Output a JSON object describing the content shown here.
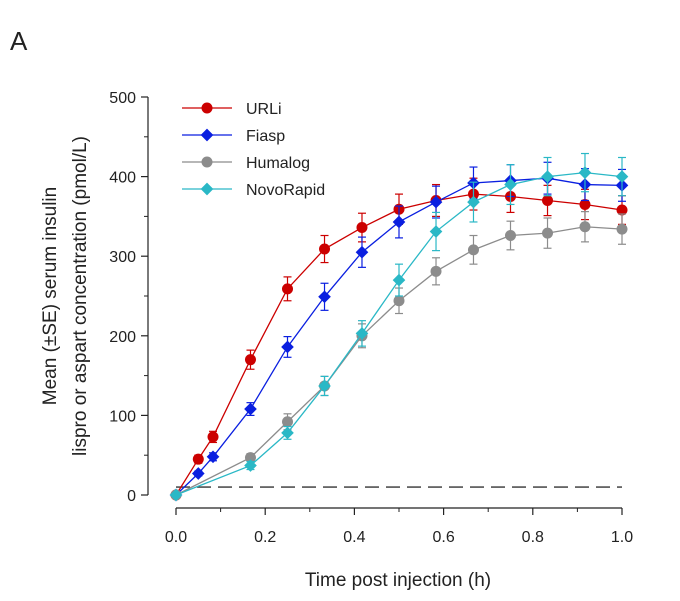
{
  "chart_data": {
    "type": "line",
    "panel_label": "A",
    "xlabel": "Time post injection (h)",
    "ylabel_line1": "Mean (±SE) serum insulin",
    "ylabel_line2": "lispro or aspart concentration (pmol/L)",
    "xlim": [
      0,
      1.0
    ],
    "ylim": [
      0,
      500
    ],
    "x_ticks": [
      0.0,
      0.2,
      0.4,
      0.6,
      0.8,
      1.0
    ],
    "x_tick_labels": [
      "0.0",
      "0.2",
      "0.4",
      "0.6",
      "0.8",
      "1.0"
    ],
    "y_ticks": [
      0,
      100,
      200,
      300,
      400,
      500
    ],
    "y_tick_labels": [
      "0",
      "100",
      "200",
      "300",
      "400",
      "500"
    ],
    "legend_position": "top-left",
    "reference_line": {
      "y": 10,
      "style": "dashed"
    },
    "series": [
      {
        "name": "URLi",
        "marker": "circle",
        "color": "#cc0000",
        "x": [
          0,
          0.05,
          0.083,
          0.167,
          0.25,
          0.333,
          0.417,
          0.5,
          0.583,
          0.667,
          0.75,
          0.833,
          0.917,
          1.0
        ],
        "y": [
          0,
          45,
          73,
          170,
          259,
          309,
          336,
          359,
          370,
          378,
          375,
          370,
          365,
          358
        ],
        "err": [
          3,
          5,
          7,
          12,
          15,
          17,
          18,
          19,
          20,
          20,
          20,
          19,
          19,
          18
        ]
      },
      {
        "name": "Fiasp",
        "marker": "diamond",
        "color": "#0a1fe0",
        "x": [
          0,
          0.05,
          0.083,
          0.167,
          0.25,
          0.333,
          0.417,
          0.5,
          0.583,
          0.667,
          0.75,
          0.833,
          0.917,
          1.0
        ],
        "y": [
          0,
          27,
          48,
          108,
          186,
          249,
          305,
          343,
          368,
          392,
          395,
          398,
          390,
          389
        ],
        "err": [
          2,
          3,
          5,
          8,
          13,
          17,
          19,
          20,
          20,
          20,
          20,
          20,
          20,
          20
        ]
      },
      {
        "name": "Humalog",
        "marker": "circle",
        "color": "#8c8c8c",
        "x": [
          0,
          0.167,
          0.25,
          0.333,
          0.417,
          0.5,
          0.583,
          0.667,
          0.75,
          0.833,
          0.917,
          1.0
        ],
        "y": [
          0,
          47,
          92,
          137,
          200,
          244,
          281,
          308,
          326,
          329,
          337,
          334
        ],
        "err": [
          2,
          5,
          10,
          12,
          15,
          16,
          17,
          18,
          18,
          19,
          19,
          19
        ]
      },
      {
        "name": "NovoRapid",
        "marker": "diamond",
        "color": "#2ab8c6",
        "x": [
          0,
          0.167,
          0.25,
          0.333,
          0.417,
          0.5,
          0.583,
          0.667,
          0.75,
          0.833,
          0.917,
          1.0
        ],
        "y": [
          0,
          37,
          78,
          137,
          203,
          270,
          331,
          368,
          390,
          400,
          405,
          400
        ],
        "err": [
          2,
          5,
          8,
          12,
          16,
          20,
          24,
          25,
          25,
          24,
          24,
          24
        ]
      }
    ]
  }
}
